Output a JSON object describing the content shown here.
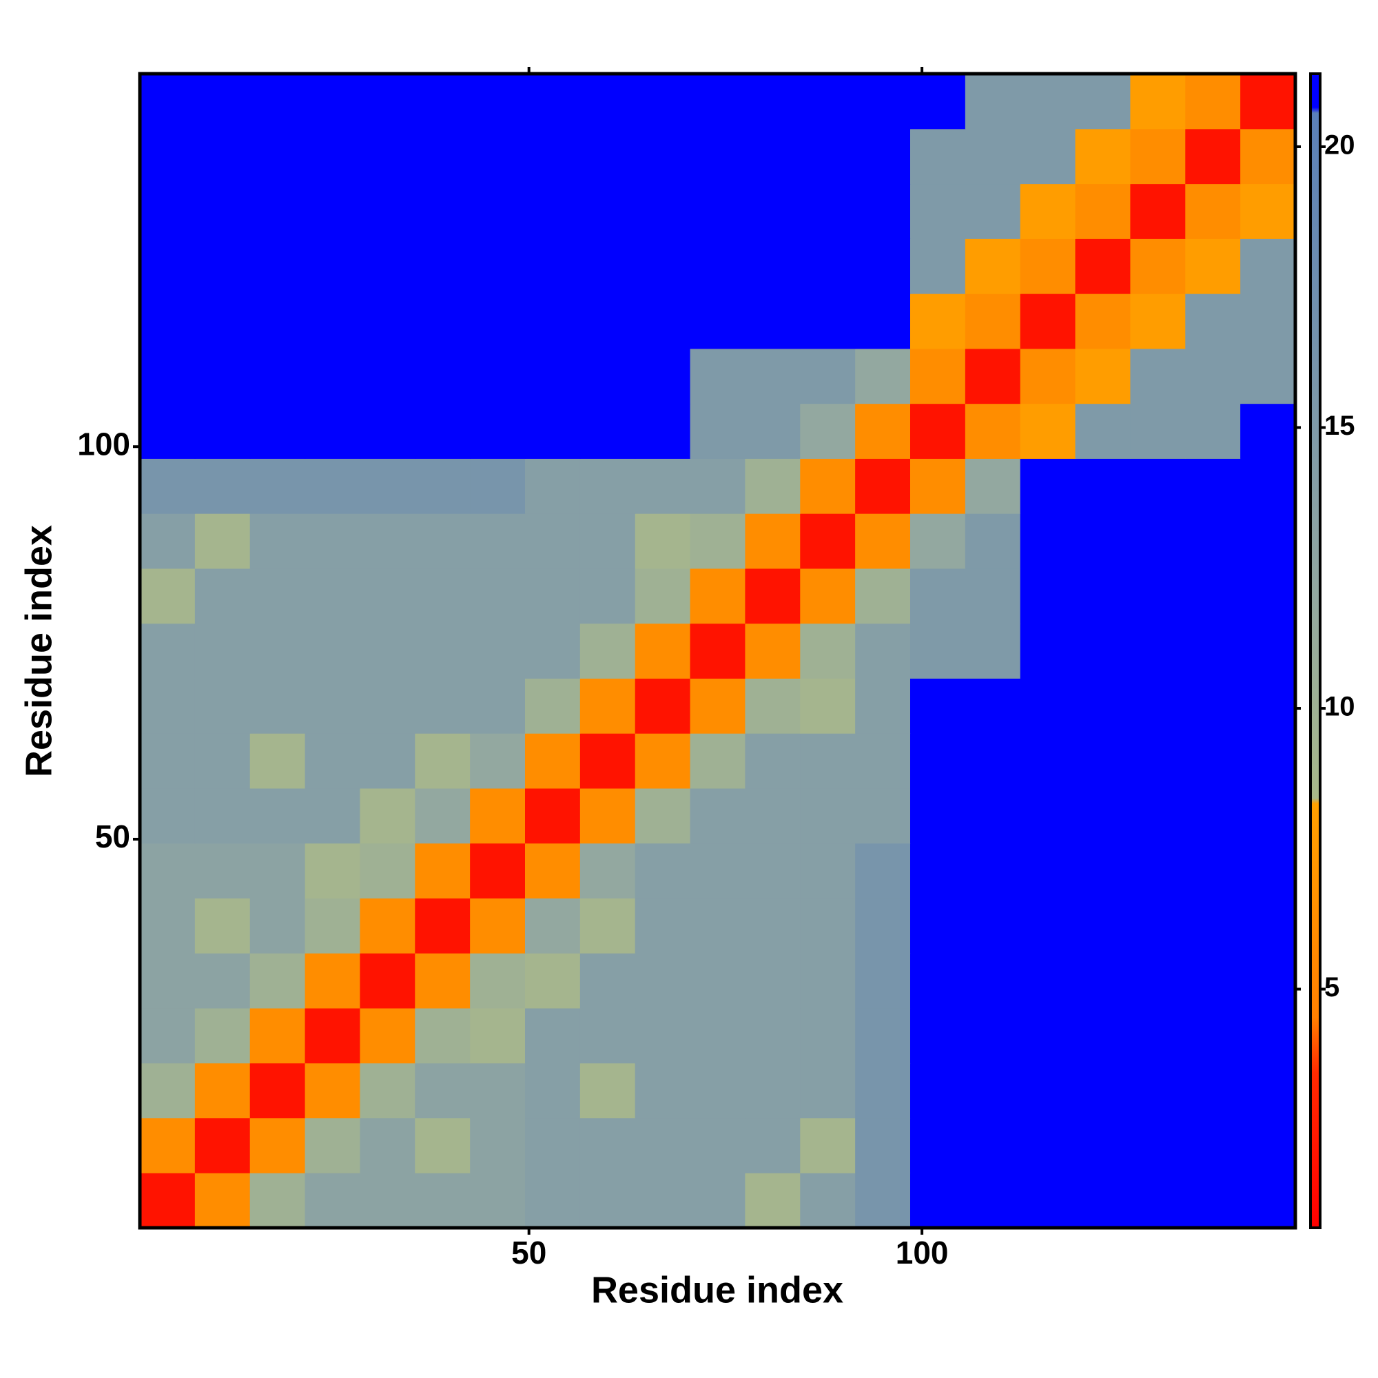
{
  "chart_data": {
    "type": "heatmap",
    "xlabel": "Residue index",
    "ylabel": "Residue index",
    "x_bins": [
      0.5,
      7.5,
      14.5,
      21.5,
      28.5,
      35.5,
      42.5,
      49.5,
      56.5,
      63.5,
      70.5,
      77.5,
      84.5,
      91.5,
      98.5,
      105.5,
      112.5,
      119.5,
      126.5,
      133.5,
      140.5,
      147.5
    ],
    "y_bins": [
      0.5,
      7.5,
      14.5,
      21.5,
      28.5,
      35.5,
      42.5,
      49.5,
      56.5,
      63.5,
      70.5,
      77.5,
      84.5,
      91.5,
      98.5,
      105.5,
      112.5,
      119.5,
      126.5,
      133.5,
      140.5,
      147.5
    ],
    "z": [
      [
        2,
        6,
        10,
        13,
        13,
        13,
        13,
        14,
        14,
        14,
        14,
        9,
        14,
        16,
        21,
        21,
        21,
        21,
        21,
        21,
        21
      ],
      [
        6,
        2,
        6,
        10,
        13,
        9,
        13,
        14,
        14,
        14,
        14,
        14,
        9,
        16,
        21,
        21,
        21,
        21,
        21,
        21,
        21
      ],
      [
        10,
        6,
        2,
        6,
        10,
        13,
        13,
        14,
        9,
        14,
        14,
        14,
        14,
        16,
        21,
        21,
        21,
        21,
        21,
        21,
        21
      ],
      [
        13,
        10,
        6,
        2,
        6,
        10,
        9,
        14,
        14,
        14,
        14,
        14,
        14,
        16,
        21,
        21,
        21,
        21,
        21,
        21,
        21
      ],
      [
        13,
        13,
        10,
        6,
        2,
        6,
        10,
        9,
        14,
        14,
        14,
        14,
        14,
        16,
        21,
        21,
        21,
        21,
        21,
        21,
        21
      ],
      [
        13,
        9,
        13,
        10,
        6,
        2,
        6,
        12,
        9,
        14,
        14,
        14,
        14,
        16,
        21,
        21,
        21,
        21,
        21,
        21,
        21
      ],
      [
        13,
        13,
        13,
        9,
        10,
        6,
        2,
        6,
        12,
        14,
        14,
        14,
        14,
        16,
        21,
        21,
        21,
        21,
        21,
        21,
        21
      ],
      [
        14,
        14,
        14,
        14,
        9,
        12,
        6,
        2,
        6,
        10,
        14,
        14,
        14,
        14,
        21,
        21,
        21,
        21,
        21,
        21,
        21
      ],
      [
        14,
        14,
        9,
        14,
        14,
        9,
        12,
        6,
        2,
        6,
        10,
        14,
        14,
        14,
        21,
        21,
        21,
        21,
        21,
        21,
        21
      ],
      [
        14,
        14,
        14,
        14,
        14,
        14,
        14,
        10,
        6,
        2,
        6,
        10,
        9,
        14,
        21,
        21,
        21,
        21,
        21,
        21,
        21
      ],
      [
        14,
        14,
        14,
        14,
        14,
        14,
        14,
        14,
        10,
        6,
        2,
        6,
        10,
        14,
        15,
        15,
        21,
        21,
        21,
        21,
        21
      ],
      [
        9,
        14,
        14,
        14,
        14,
        14,
        14,
        14,
        14,
        10,
        6,
        2,
        6,
        10,
        15,
        15,
        21,
        21,
        21,
        21,
        21
      ],
      [
        14,
        9,
        14,
        14,
        14,
        14,
        14,
        14,
        14,
        9,
        10,
        6,
        2,
        6,
        12,
        15,
        21,
        21,
        21,
        21,
        21
      ],
      [
        16,
        16,
        16,
        16,
        16,
        16,
        16,
        14,
        14,
        14,
        14,
        10,
        6,
        2,
        6,
        12,
        21,
        21,
        21,
        21,
        21
      ],
      [
        21,
        21,
        21,
        21,
        21,
        21,
        21,
        21,
        21,
        21,
        15,
        15,
        12,
        6,
        2,
        6,
        8,
        15,
        15,
        15,
        21
      ],
      [
        21,
        21,
        21,
        21,
        21,
        21,
        21,
        21,
        21,
        21,
        15,
        15,
        15,
        12,
        6,
        2,
        6,
        8,
        15,
        15,
        15
      ],
      [
        21,
        21,
        21,
        21,
        21,
        21,
        21,
        21,
        21,
        21,
        21,
        21,
        21,
        21,
        8,
        6,
        2,
        6,
        8,
        15,
        15
      ],
      [
        21,
        21,
        21,
        21,
        21,
        21,
        21,
        21,
        21,
        21,
        21,
        21,
        21,
        21,
        15,
        8,
        6,
        2,
        6,
        8,
        15
      ],
      [
        21,
        21,
        21,
        21,
        21,
        21,
        21,
        21,
        21,
        21,
        21,
        21,
        21,
        21,
        15,
        15,
        8,
        6,
        2,
        6,
        8
      ],
      [
        21,
        21,
        21,
        21,
        21,
        21,
        21,
        21,
        21,
        21,
        21,
        21,
        21,
        21,
        15,
        15,
        15,
        8,
        6,
        2,
        6
      ],
      [
        21,
        21,
        21,
        21,
        21,
        21,
        21,
        21,
        21,
        21,
        21,
        21,
        21,
        21,
        21,
        15,
        15,
        15,
        8,
        6,
        2
      ]
    ],
    "xlim": [
      0.5,
      147.5
    ],
    "ylim": [
      0.5,
      147.5
    ],
    "xticks": [
      50,
      100
    ],
    "yticks": [
      50,
      100
    ],
    "clim": [
      0.75,
      21.3
    ],
    "cticks": [
      5,
      10,
      15,
      20
    ],
    "color_stops": [
      {
        "value": 0.75,
        "color": "#ff0000"
      },
      {
        "value": 3.5,
        "color": "#ff2a00"
      },
      {
        "value": 4.5,
        "color": "#ff8000"
      },
      {
        "value": 8.3,
        "color": "#ffa000"
      },
      {
        "value": 8.4,
        "color": "#a8b88a"
      },
      {
        "value": 12,
        "color": "#93a8a0"
      },
      {
        "value": 20.6,
        "color": "#5a80b8"
      },
      {
        "value": 20.7,
        "color": "#0000ff"
      },
      {
        "value": 21.3,
        "color": "#0000ff"
      }
    ]
  }
}
